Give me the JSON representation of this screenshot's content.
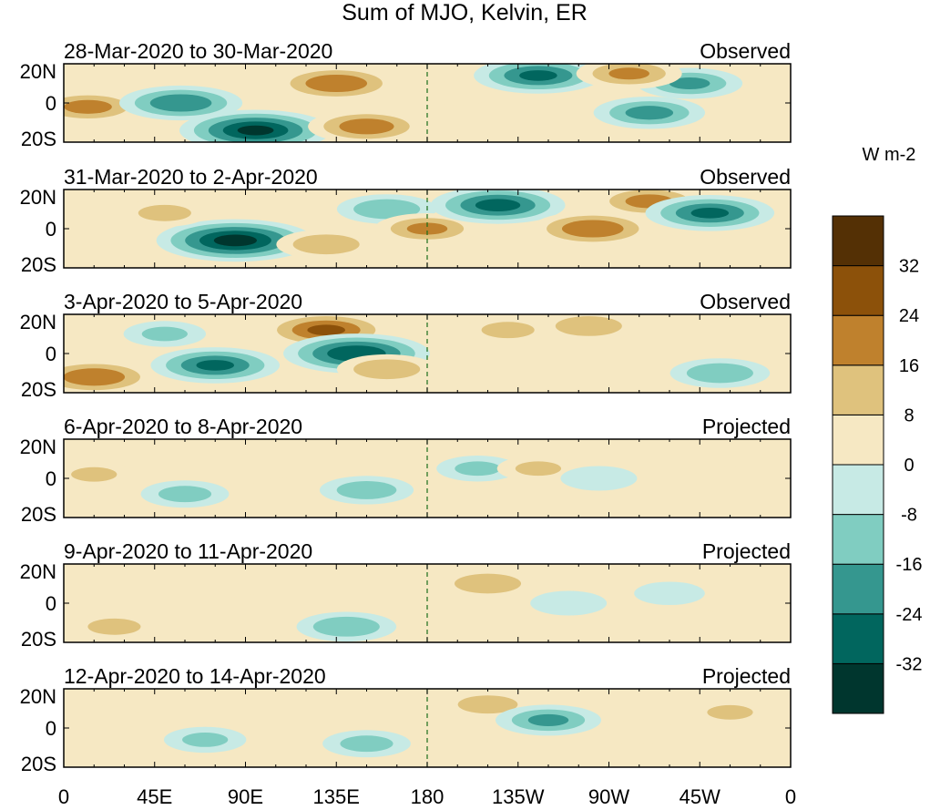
{
  "title": "Sum of MJO, Kelvin, ER",
  "colorbar": {
    "units": "W m-2",
    "levels": [
      -40,
      -32,
      -24,
      -16,
      -8,
      0,
      8,
      16,
      24,
      32,
      40
    ],
    "tick_labels": [
      "-32",
      "-24",
      "-16",
      "-8",
      "0",
      "8",
      "16",
      "24",
      "32"
    ],
    "colors": [
      "#00362e",
      "#01665e",
      "#35978f",
      "#80cdc1",
      "#c7eae5",
      "#f6e8c3",
      "#dfc27d",
      "#bf812d",
      "#8c510a",
      "#543005"
    ]
  },
  "chart_data": {
    "type": "heatmap",
    "title": "Sum of MJO, Kelvin, ER",
    "x_ticks": [
      "0",
      "45E",
      "90E",
      "135E",
      "180",
      "135W",
      "90W",
      "45W",
      "0"
    ],
    "y_ticks": [
      "20N",
      "0",
      "20S"
    ],
    "xlim": [
      0,
      360
    ],
    "ylim": [
      -20,
      20
    ],
    "dateline_lon": 180,
    "panels": [
      {
        "date": "28-Mar-2020 to 30-Mar-2020",
        "status": "Observed",
        "anomalies": [
          {
            "lon": 12,
            "lat": -2,
            "value": 22
          },
          {
            "lon": 58,
            "lat": 0,
            "value": -26
          },
          {
            "lon": 95,
            "lat": -14,
            "value": -36
          },
          {
            "lon": 135,
            "lat": 10,
            "value": 26
          },
          {
            "lon": 150,
            "lat": -12,
            "value": 24
          },
          {
            "lon": 195,
            "lat": 5,
            "value": 10
          },
          {
            "lon": 235,
            "lat": 14,
            "value": -28
          },
          {
            "lon": 290,
            "lat": -5,
            "value": -22
          },
          {
            "lon": 310,
            "lat": 10,
            "value": -20
          },
          {
            "lon": 280,
            "lat": 15,
            "value": 20
          }
        ]
      },
      {
        "date": "31-Mar-2020 to 2-Apr-2020",
        "status": "Observed",
        "anomalies": [
          {
            "lon": 85,
            "lat": -6,
            "value": -38
          },
          {
            "lon": 130,
            "lat": -8,
            "value": 18
          },
          {
            "lon": 160,
            "lat": 10,
            "value": -18
          },
          {
            "lon": 180,
            "lat": 0,
            "value": 20
          },
          {
            "lon": 215,
            "lat": 12,
            "value": -30
          },
          {
            "lon": 262,
            "lat": 0,
            "value": 26
          },
          {
            "lon": 290,
            "lat": 14,
            "value": 22
          },
          {
            "lon": 320,
            "lat": 8,
            "value": -28
          },
          {
            "lon": 50,
            "lat": 8,
            "value": 14
          }
        ]
      },
      {
        "date": "3-Apr-2020 to 5-Apr-2020",
        "status": "Observed",
        "anomalies": [
          {
            "lon": 15,
            "lat": -12,
            "value": 26
          },
          {
            "lon": 75,
            "lat": -6,
            "value": -28
          },
          {
            "lon": 130,
            "lat": 12,
            "value": 28
          },
          {
            "lon": 145,
            "lat": 0,
            "value": -34
          },
          {
            "lon": 160,
            "lat": -8,
            "value": 18
          },
          {
            "lon": 220,
            "lat": 12,
            "value": 14
          },
          {
            "lon": 260,
            "lat": 14,
            "value": 18
          },
          {
            "lon": 325,
            "lat": -10,
            "value": -18
          },
          {
            "lon": 50,
            "lat": 10,
            "value": -12
          }
        ]
      },
      {
        "date": "6-Apr-2020 to 8-Apr-2020",
        "status": "Projected",
        "anomalies": [
          {
            "lon": 15,
            "lat": 2,
            "value": 12
          },
          {
            "lon": 60,
            "lat": -8,
            "value": -14
          },
          {
            "lon": 110,
            "lat": -6,
            "value": 10
          },
          {
            "lon": 150,
            "lat": -6,
            "value": -16
          },
          {
            "lon": 205,
            "lat": 5,
            "value": -12
          },
          {
            "lon": 235,
            "lat": 5,
            "value": 12
          },
          {
            "lon": 265,
            "lat": 0,
            "value": -10
          },
          {
            "lon": 330,
            "lat": 0,
            "value": 10
          }
        ]
      },
      {
        "date": "9-Apr-2020 to 11-Apr-2020",
        "status": "Projected",
        "anomalies": [
          {
            "lon": 25,
            "lat": -12,
            "value": 14
          },
          {
            "lon": 95,
            "lat": -2,
            "value": 10
          },
          {
            "lon": 140,
            "lat": -12,
            "value": -18
          },
          {
            "lon": 210,
            "lat": 10,
            "value": 18
          },
          {
            "lon": 250,
            "lat": 0,
            "value": -10
          },
          {
            "lon": 300,
            "lat": 5,
            "value": -8
          },
          {
            "lon": 335,
            "lat": 0,
            "value": 10
          }
        ]
      },
      {
        "date": "12-Apr-2020 to 14-Apr-2020",
        "status": "Projected",
        "anomalies": [
          {
            "lon": 20,
            "lat": 5,
            "value": 10
          },
          {
            "lon": 70,
            "lat": -6,
            "value": -12
          },
          {
            "lon": 150,
            "lat": -8,
            "value": -14
          },
          {
            "lon": 210,
            "lat": 12,
            "value": 16
          },
          {
            "lon": 240,
            "lat": 4,
            "value": -20
          },
          {
            "lon": 285,
            "lat": -2,
            "value": 10
          },
          {
            "lon": 330,
            "lat": 8,
            "value": 12
          }
        ]
      }
    ]
  }
}
